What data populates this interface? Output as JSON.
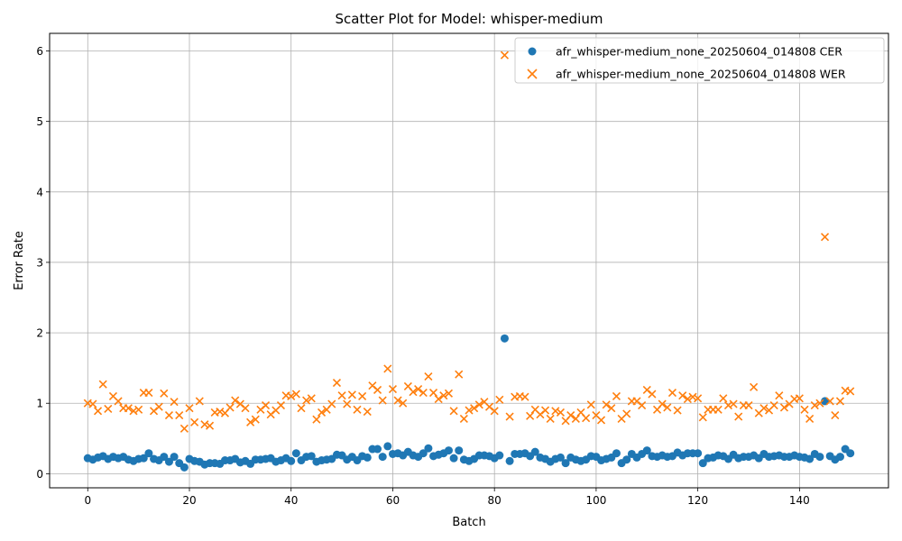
{
  "chart_data": {
    "type": "scatter",
    "title": "Scatter Plot for Model: whisper-medium",
    "xlabel": "Batch",
    "ylabel": "Error Rate",
    "xlim": [
      -7.5,
      157.5
    ],
    "ylim": [
      -0.2,
      6.25
    ],
    "xticks": [
      0,
      20,
      40,
      60,
      80,
      100,
      120,
      140
    ],
    "yticks": [
      0,
      1,
      2,
      3,
      4,
      5,
      6
    ],
    "grid": true,
    "legend_position": "top-right",
    "series": [
      {
        "name": "afr_whisper-medium_none_20250604_014808 CER",
        "marker": "circle",
        "color": "#1f77b4",
        "x": [
          0,
          1,
          2,
          3,
          4,
          5,
          6,
          7,
          8,
          9,
          10,
          11,
          12,
          13,
          14,
          15,
          16,
          17,
          18,
          19,
          20,
          21,
          22,
          23,
          24,
          25,
          26,
          27,
          28,
          29,
          30,
          31,
          32,
          33,
          34,
          35,
          36,
          37,
          38,
          39,
          40,
          41,
          42,
          43,
          44,
          45,
          46,
          47,
          48,
          49,
          50,
          51,
          52,
          53,
          54,
          55,
          56,
          57,
          58,
          59,
          60,
          61,
          62,
          63,
          64,
          65,
          66,
          67,
          68,
          69,
          70,
          71,
          72,
          73,
          74,
          75,
          76,
          77,
          78,
          79,
          80,
          81,
          82,
          83,
          84,
          85,
          86,
          87,
          88,
          89,
          90,
          91,
          92,
          93,
          94,
          95,
          96,
          97,
          98,
          99,
          100,
          101,
          102,
          103,
          104,
          105,
          106,
          107,
          108,
          109,
          110,
          111,
          112,
          113,
          114,
          115,
          116,
          117,
          118,
          119,
          120,
          121,
          122,
          123,
          124,
          125,
          126,
          127,
          128,
          129,
          130,
          131,
          132,
          133,
          134,
          135,
          136,
          137,
          138,
          139,
          140,
          141,
          142,
          143,
          144,
          145,
          146,
          147,
          148,
          149,
          150
        ],
        "y": [
          0.22,
          0.2,
          0.23,
          0.25,
          0.21,
          0.24,
          0.22,
          0.24,
          0.2,
          0.18,
          0.21,
          0.22,
          0.29,
          0.21,
          0.19,
          0.24,
          0.17,
          0.24,
          0.15,
          0.09,
          0.21,
          0.18,
          0.17,
          0.13,
          0.15,
          0.15,
          0.14,
          0.19,
          0.19,
          0.21,
          0.16,
          0.18,
          0.14,
          0.2,
          0.2,
          0.21,
          0.22,
          0.17,
          0.19,
          0.22,
          0.18,
          0.29,
          0.19,
          0.24,
          0.25,
          0.17,
          0.19,
          0.2,
          0.21,
          0.27,
          0.26,
          0.2,
          0.24,
          0.19,
          0.25,
          0.23,
          0.35,
          0.35,
          0.24,
          0.39,
          0.28,
          0.29,
          0.26,
          0.31,
          0.26,
          0.24,
          0.29,
          0.36,
          0.25,
          0.27,
          0.29,
          0.33,
          0.22,
          0.33,
          0.2,
          0.18,
          0.21,
          0.26,
          0.26,
          0.25,
          0.22,
          0.26,
          1.92,
          0.18,
          0.28,
          0.28,
          0.29,
          0.25,
          0.31,
          0.23,
          0.21,
          0.17,
          0.21,
          0.23,
          0.15,
          0.23,
          0.2,
          0.18,
          0.2,
          0.25,
          0.24,
          0.19,
          0.21,
          0.23,
          0.29,
          0.15,
          0.2,
          0.28,
          0.23,
          0.28,
          0.33,
          0.25,
          0.24,
          0.26,
          0.24,
          0.25,
          0.3,
          0.26,
          0.29,
          0.29,
          0.29,
          0.15,
          0.22,
          0.23,
          0.26,
          0.25,
          0.21,
          0.27,
          0.22,
          0.24,
          0.24,
          0.26,
          0.22,
          0.28,
          0.24,
          0.25,
          0.26,
          0.24,
          0.24,
          0.26,
          0.24,
          0.23,
          0.21,
          0.28,
          0.24,
          1.03,
          0.25,
          0.2,
          0.24,
          0.35,
          0.29
        ]
      },
      {
        "name": "afr_whisper-medium_none_20250604_014808 WER",
        "marker": "x",
        "color": "#ff7f0e",
        "x": [
          0,
          1,
          2,
          3,
          4,
          5,
          6,
          7,
          8,
          9,
          10,
          11,
          12,
          13,
          14,
          15,
          16,
          17,
          18,
          19,
          20,
          21,
          22,
          23,
          24,
          25,
          26,
          27,
          28,
          29,
          30,
          31,
          32,
          33,
          34,
          35,
          36,
          37,
          38,
          39,
          40,
          41,
          42,
          43,
          44,
          45,
          46,
          47,
          48,
          49,
          50,
          51,
          52,
          53,
          54,
          55,
          56,
          57,
          58,
          59,
          60,
          61,
          62,
          63,
          64,
          65,
          66,
          67,
          68,
          69,
          70,
          71,
          72,
          73,
          74,
          75,
          76,
          77,
          78,
          79,
          80,
          81,
          82,
          83,
          84,
          85,
          86,
          87,
          88,
          89,
          90,
          91,
          92,
          93,
          94,
          95,
          96,
          97,
          98,
          99,
          100,
          101,
          102,
          103,
          104,
          105,
          106,
          107,
          108,
          109,
          110,
          111,
          112,
          113,
          114,
          115,
          116,
          117,
          118,
          119,
          120,
          121,
          122,
          123,
          124,
          125,
          126,
          127,
          128,
          129,
          130,
          131,
          132,
          133,
          134,
          135,
          136,
          137,
          138,
          139,
          140,
          141,
          142,
          143,
          144,
          145,
          146,
          147,
          148,
          149,
          150
        ],
        "y": [
          1.0,
          0.99,
          0.89,
          1.27,
          0.92,
          1.1,
          1.03,
          0.93,
          0.93,
          0.89,
          0.91,
          1.15,
          1.15,
          0.89,
          0.95,
          1.14,
          0.83,
          1.02,
          0.83,
          0.64,
          0.93,
          0.73,
          1.03,
          0.7,
          0.68,
          0.87,
          0.88,
          0.86,
          0.94,
          1.04,
          0.99,
          0.93,
          0.73,
          0.77,
          0.91,
          0.97,
          0.84,
          0.9,
          0.97,
          1.11,
          1.1,
          1.13,
          0.93,
          1.04,
          1.07,
          0.77,
          0.87,
          0.91,
          0.99,
          1.29,
          1.11,
          0.99,
          1.12,
          0.91,
          1.1,
          0.88,
          1.25,
          1.19,
          1.04,
          1.49,
          1.2,
          1.04,
          1.0,
          1.24,
          1.16,
          1.2,
          1.15,
          1.38,
          1.15,
          1.06,
          1.11,
          1.14,
          0.89,
          1.41,
          0.78,
          0.9,
          0.93,
          0.98,
          1.02,
          0.95,
          0.89,
          1.05,
          5.94,
          0.81,
          1.09,
          1.1,
          1.09,
          0.82,
          0.91,
          0.84,
          0.9,
          0.78,
          0.89,
          0.87,
          0.75,
          0.83,
          0.78,
          0.87,
          0.79,
          0.98,
          0.83,
          0.76,
          0.98,
          0.93,
          1.1,
          0.78,
          0.85,
          1.03,
          1.03,
          0.97,
          1.19,
          1.13,
          0.91,
          0.99,
          0.94,
          1.15,
          0.9,
          1.11,
          1.06,
          1.09,
          1.07,
          0.8,
          0.91,
          0.91,
          0.91,
          1.07,
          0.97,
          0.99,
          0.81,
          0.97,
          0.97,
          1.23,
          0.86,
          0.93,
          0.9,
          0.97,
          1.11,
          0.94,
          0.99,
          1.06,
          1.07,
          0.91,
          0.78,
          0.97,
          1.0,
          3.36,
          1.03,
          0.83,
          1.03,
          1.18,
          1.17
        ]
      }
    ]
  }
}
